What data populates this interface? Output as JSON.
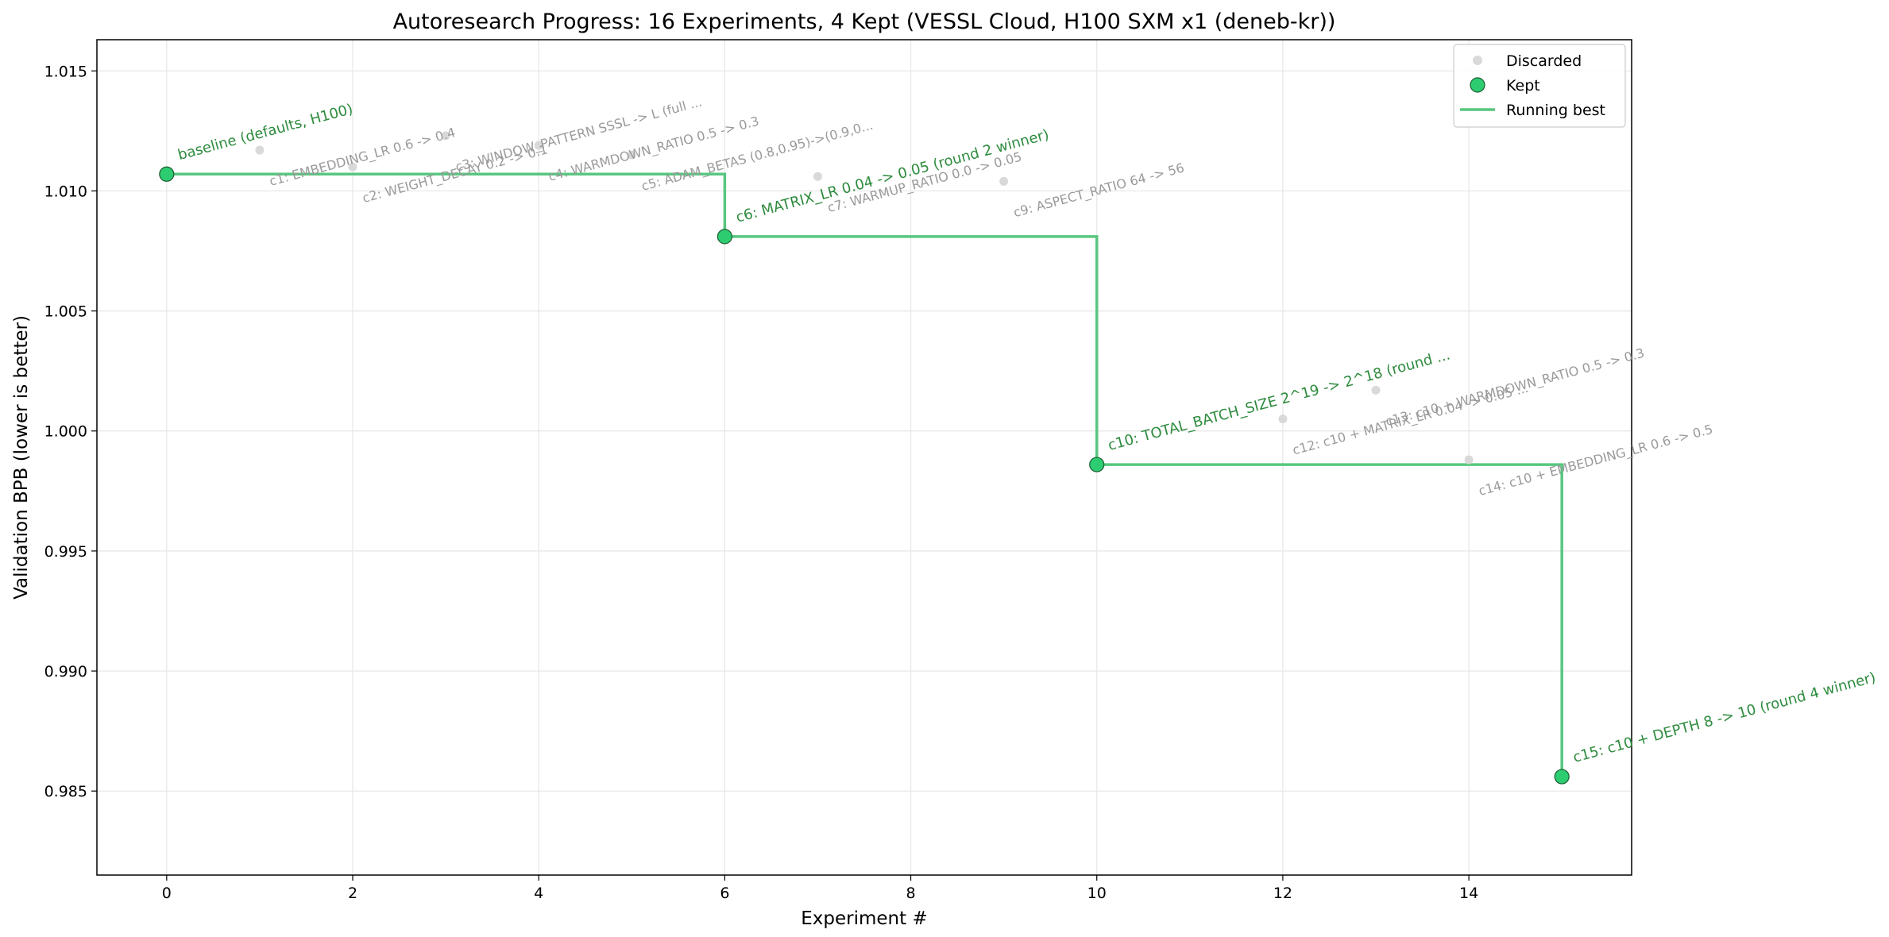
{
  "chart_data": {
    "type": "scatter",
    "title": "Autoresearch Progress: 16 Experiments, 4 Kept (VESSL Cloud, H100 SXM x1 (deneb-kr))",
    "xlabel": "Experiment #",
    "ylabel": "Validation BPB (lower is better)",
    "xlim": [
      -0.75,
      15.75
    ],
    "ylim": [
      0.9815,
      1.0163
    ],
    "xticks": [
      0,
      2,
      4,
      6,
      8,
      10,
      12,
      14
    ],
    "yticks": [
      0.985,
      0.99,
      0.995,
      1.0,
      1.005,
      1.01,
      1.015
    ],
    "xtick_labels": [
      "0",
      "2",
      "4",
      "6",
      "8",
      "10",
      "12",
      "14"
    ],
    "ytick_labels": [
      "0.985",
      "0.990",
      "0.995",
      "1.000",
      "1.005",
      "1.010",
      "1.015"
    ],
    "grid": true,
    "legend_position": "top-right",
    "colors": {
      "discarded": "#d9d9d9",
      "kept": "#2ecc71",
      "kept_edge": "#1a5c30",
      "running_best": "#58c77f",
      "kept_text": "#2e8b3e",
      "discarded_text": "#9a9a9a"
    },
    "series": [
      {
        "name": "Discarded",
        "points": [
          {
            "x": 1,
            "y": 1.0117,
            "label": "c1: EMBEDDING_LR 0.6 -> 0.4"
          },
          {
            "x": 2,
            "y": 1.011,
            "label": "c2: WEIGHT_DECAY 0.2 -> 0.1"
          },
          {
            "x": 3,
            "y": 1.0123,
            "label": "c3: WINDOW_PATTERN SSSL -> L (full ..."
          },
          {
            "x": 4,
            "y": 1.0119,
            "label": "c4: WARMDOWN_RATIO 0.5 -> 0.3"
          },
          {
            "x": 5,
            "y": 1.0115,
            "label": "c5: ADAM_BETAS (0.8,0.95)->(0.9,0..."
          },
          {
            "x": 7,
            "y": 1.0106,
            "label": "c7: WARMUP_RATIO 0.0 -> 0.05"
          },
          {
            "x": 9,
            "y": 1.0104,
            "label": "c9: ASPECT_RATIO 64 -> 56"
          },
          {
            "x": 12,
            "y": 1.0005,
            "label": "c12: c10 + MATRIX_LR 0.04 -> 0.05 ..."
          },
          {
            "x": 13,
            "y": 1.0017,
            "label": "c13: c10 + WARMDOWN_RATIO 0.5 -> 0.3"
          },
          {
            "x": 14,
            "y": 0.9988,
            "label": "c14: c10 + EMBEDDING_LR 0.6 -> 0.5"
          }
        ]
      },
      {
        "name": "Kept",
        "points": [
          {
            "x": 0,
            "y": 1.0107,
            "label": "baseline (defaults, H100)"
          },
          {
            "x": 6,
            "y": 1.0081,
            "label": "c6: MATRIX_LR 0.04 -> 0.05 (round 2 winner)"
          },
          {
            "x": 10,
            "y": 0.9986,
            "label": "c10: TOTAL_BATCH_SIZE 2^19 -> 2^18 (round ..."
          },
          {
            "x": 15,
            "y": 0.9856,
            "label": "c15: c10 + DEPTH 8 -> 10 (round 4 winner)"
          }
        ]
      },
      {
        "name": "Running best",
        "step_x": [
          0,
          6,
          6,
          10,
          10,
          15,
          15
        ],
        "step_y": [
          1.0107,
          1.0107,
          1.0081,
          1.0081,
          0.9986,
          0.9986,
          0.9856
        ]
      }
    ]
  }
}
